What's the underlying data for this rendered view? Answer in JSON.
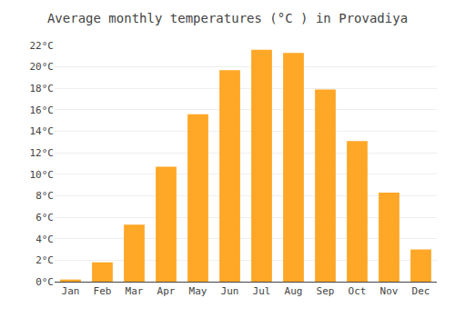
{
  "chart_data": {
    "type": "bar",
    "title": "Average monthly temperatures (°C ) in Provadiya",
    "categories": [
      "Jan",
      "Feb",
      "Mar",
      "Apr",
      "May",
      "Jun",
      "Jul",
      "Aug",
      "Sep",
      "Oct",
      "Nov",
      "Dec"
    ],
    "values": [
      0.2,
      1.8,
      5.3,
      10.7,
      15.6,
      19.7,
      21.6,
      21.3,
      17.9,
      13.1,
      8.3,
      3.0
    ],
    "color": "#FFA726",
    "ylim": [
      0,
      22
    ],
    "yticks": [
      {
        "value": 0,
        "label": "0°C"
      },
      {
        "value": 2,
        "label": "2°C"
      },
      {
        "value": 4,
        "label": "4°C"
      },
      {
        "value": 6,
        "label": "6°C"
      },
      {
        "value": 8,
        "label": "8°C"
      },
      {
        "value": 10,
        "label": "10°C"
      },
      {
        "value": 12,
        "label": "12°C"
      },
      {
        "value": 14,
        "label": "14°C"
      },
      {
        "value": 16,
        "label": "16°C"
      },
      {
        "value": 18,
        "label": "18°C"
      },
      {
        "value": 20,
        "label": "20°C"
      },
      {
        "value": 22,
        "label": "22°C"
      }
    ],
    "grid": true
  }
}
